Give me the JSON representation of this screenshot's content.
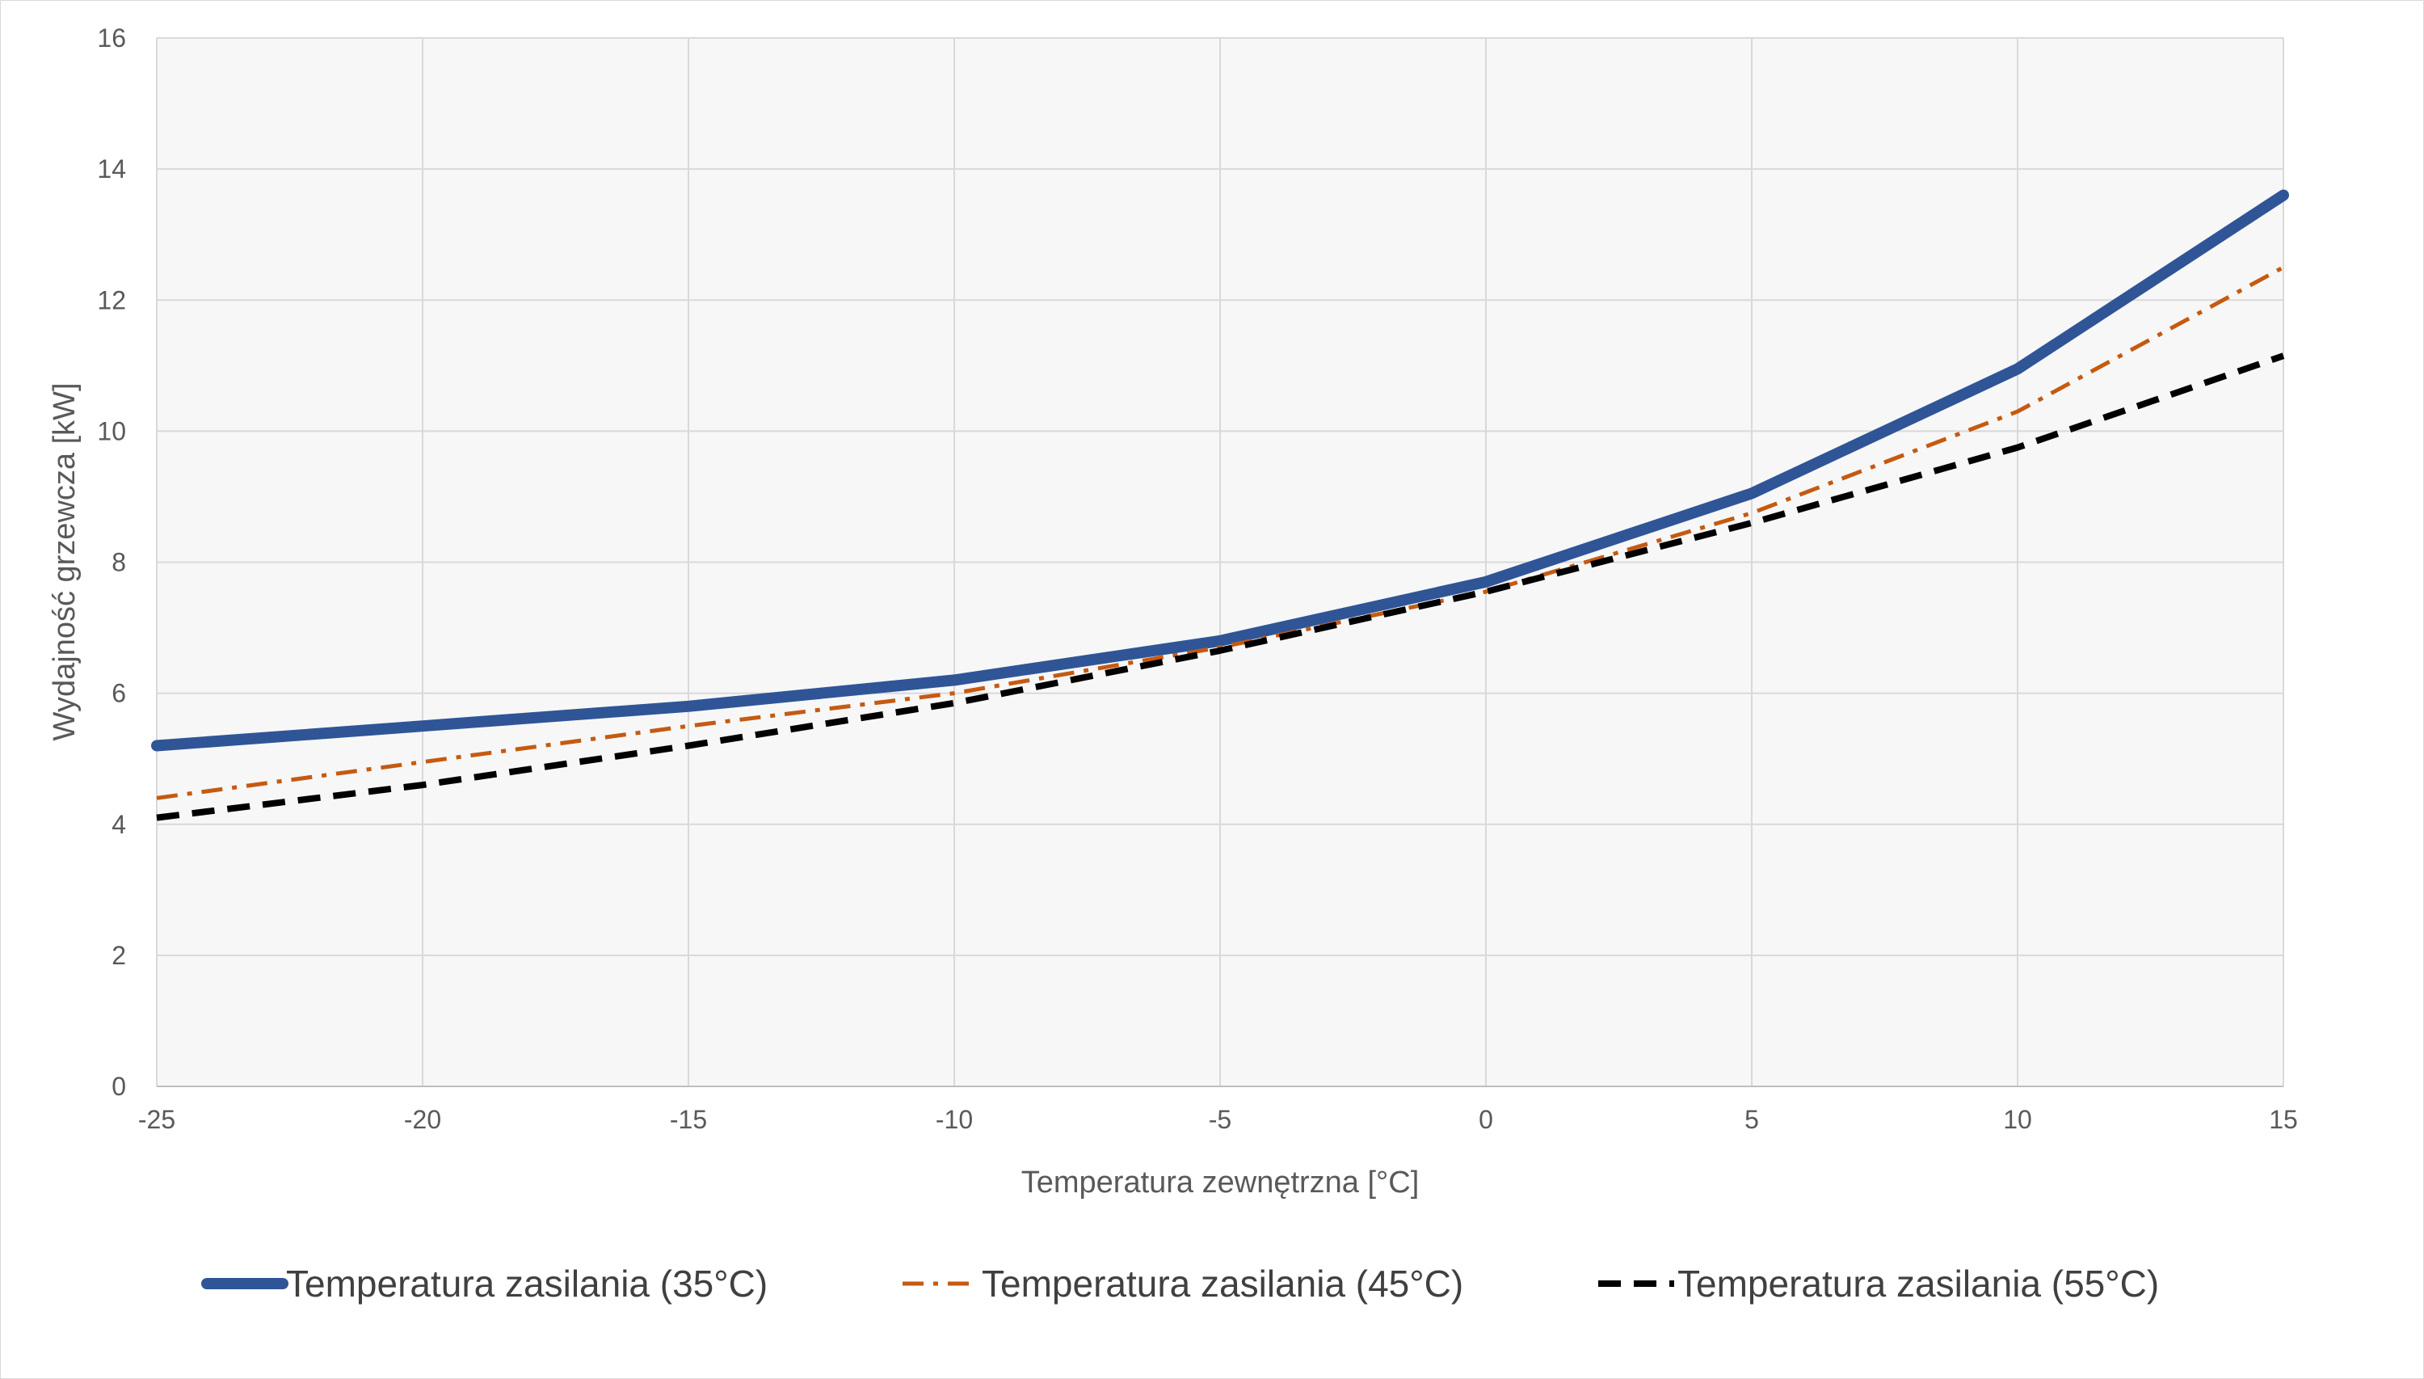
{
  "chart_data": {
    "type": "line",
    "title": "",
    "xlabel": "Temperatura zewnętrzna [°C]",
    "ylabel": "Wydajność grzewcza [kW]",
    "xlim": [
      -25,
      15
    ],
    "ylim": [
      0,
      16
    ],
    "x_ticks": [
      "-25",
      "-20",
      "-15",
      "-10",
      "-5",
      "0",
      "5",
      "10",
      "15"
    ],
    "y_ticks": [
      "0",
      "2",
      "4",
      "6",
      "8",
      "10",
      "12",
      "14",
      "16"
    ],
    "grid": true,
    "legend_position": "bottom",
    "x": [
      -25,
      -20,
      -15,
      -10,
      -5,
      0,
      5,
      10,
      15
    ],
    "series": [
      {
        "name": "Temperatura zasilania (35°C)",
        "values": [
          5.2,
          5.5,
          5.8,
          6.2,
          6.8,
          7.7,
          9.05,
          10.95,
          13.6
        ],
        "color": "#2f5597",
        "style": "solid"
      },
      {
        "name": "Temperatura zasilania (45°C)",
        "values": [
          4.4,
          4.95,
          5.5,
          6.0,
          6.7,
          7.55,
          8.75,
          10.3,
          12.5
        ],
        "color": "#c55a11",
        "style": "dash-dot"
      },
      {
        "name": "Temperatura zasilania (55°C)",
        "values": [
          4.1,
          4.6,
          5.2,
          5.85,
          6.65,
          7.55,
          8.6,
          9.75,
          11.15
        ],
        "color": "#000000",
        "style": "dashed"
      }
    ]
  }
}
